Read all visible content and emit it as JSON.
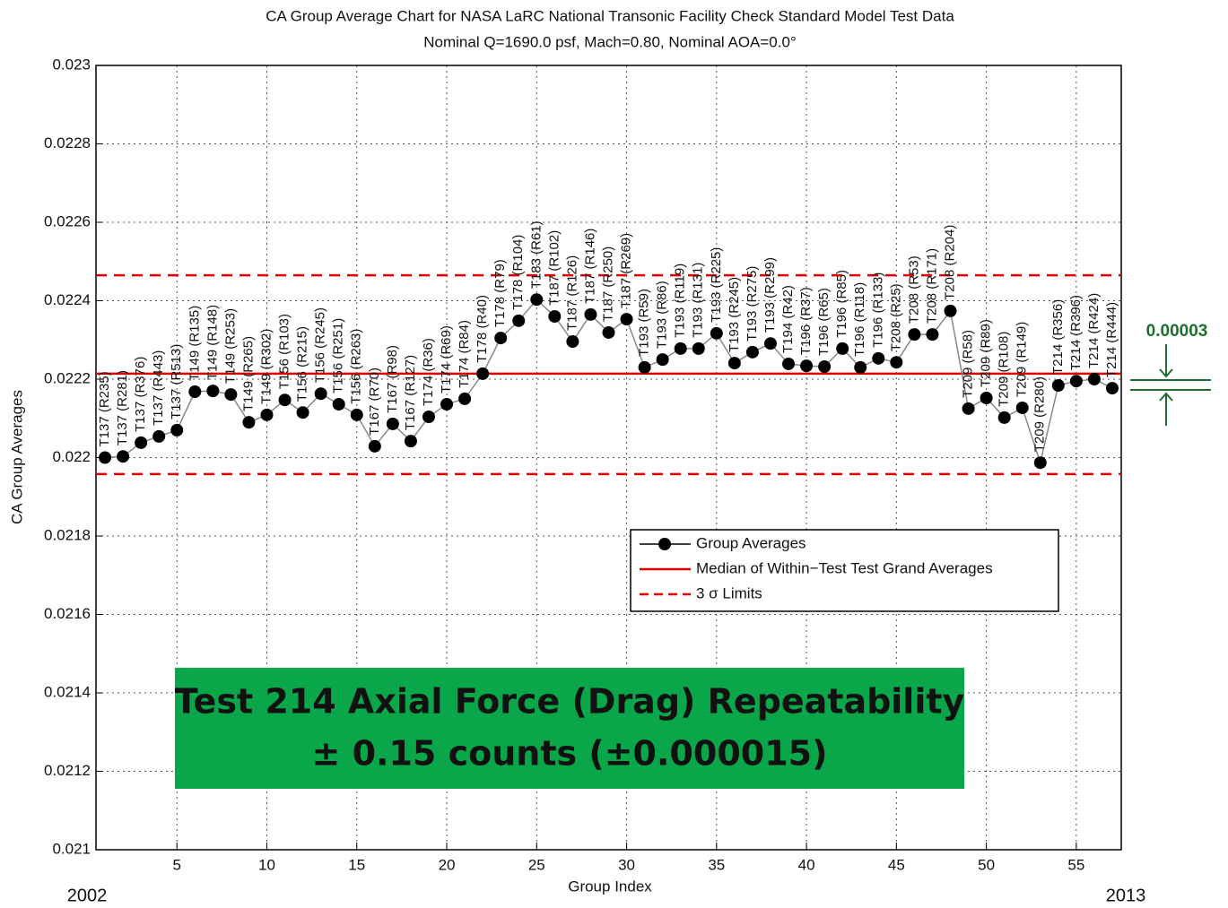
{
  "chart_data": {
    "type": "line",
    "title": "CA Group Average Chart for NASA LaRC National Transonic Facility Check Standard Model Test Data",
    "subtitle": "Nominal Q=1690.0 psf, Mach=0.80, Nominal AOA=0.0°",
    "x_label": "Group Index",
    "y_label": "CA Group Averages",
    "x": [
      1,
      2,
      3,
      4,
      5,
      6,
      7,
      8,
      9,
      10,
      11,
      12,
      13,
      14,
      15,
      16,
      17,
      18,
      19,
      20,
      21,
      22,
      23,
      24,
      25,
      26,
      27,
      28,
      29,
      30,
      31,
      32,
      33,
      34,
      35,
      36,
      37,
      38,
      39,
      40,
      41,
      42,
      43,
      44,
      45,
      46,
      47,
      48,
      49,
      50,
      51,
      52,
      53,
      54,
      55,
      56,
      57
    ],
    "series": [
      {
        "name": "Group Averages",
        "color": "#000000",
        "values": [
          0.022,
          0.022003,
          0.022038,
          0.022054,
          0.02207,
          0.022168,
          0.02217,
          0.022161,
          0.02209,
          0.022109,
          0.022147,
          0.022115,
          0.022163,
          0.022136,
          0.022109,
          0.022029,
          0.022086,
          0.022042,
          0.022104,
          0.022136,
          0.02215,
          0.022214,
          0.022305,
          0.022349,
          0.022403,
          0.02236,
          0.022296,
          0.022365,
          0.022319,
          0.022353,
          0.02223,
          0.02225,
          0.022278,
          0.022278,
          0.022317,
          0.022241,
          0.022269,
          0.022291,
          0.022239,
          0.022234,
          0.022232,
          0.022278,
          0.02223,
          0.022253,
          0.022243,
          0.022314,
          0.022314,
          0.022374,
          0.022125,
          0.022152,
          0.022102,
          0.022127,
          0.021987,
          0.022184,
          0.022195,
          0.0222,
          0.022177
        ]
      }
    ],
    "point_labels": [
      "T137 (R235)",
      "T137 (R281)",
      "T137 (R376)",
      "T137 (R443)",
      "T137 (R513)",
      "T149 (R135)",
      "T149 (R148)",
      "T149 (R253)",
      "T149 (R265)",
      "T149 (R302)",
      "T156 (R103)",
      "T156 (R215)",
      "T156 (R245)",
      "T156 (R251)",
      "T156 (R263)",
      "T167 (R70)",
      "T167 (R98)",
      "T167 (R127)",
      "T174 (R36)",
      "T174 (R69)",
      "T174 (R84)",
      "T178 (R40)",
      "T178 (R79)",
      "T178 (R104)",
      "T183 (R61)",
      "T187 (R102)",
      "T187 (R126)",
      "T187 (R146)",
      "T187 (R250)",
      "T187 (R269)",
      "T193 (R59)",
      "T193 (R86)",
      "T193 (R119)",
      "T193 (R131)",
      "T193 (R225)",
      "T193 (R245)",
      "T193 (R275)",
      "T193 (R299)",
      "T194 (R42)",
      "T196 (R37)",
      "T196 (R65)",
      "T196 (R85)",
      "T196 (R118)",
      "T196 (R133)",
      "T208 (R25)",
      "T208 (R53)",
      "T208 (R171)",
      "T208 (R204)",
      "T209 (R58)",
      "T209 (R89)",
      "T209 (R108)",
      "T209 (R149)",
      "T209 (R280)",
      "T214 (R356)",
      "T214 (R396)",
      "T214 (R424)",
      "T214 (R444)"
    ],
    "median": {
      "name": "Median of Within−Test Test Grand Averages",
      "value": 0.022214,
      "color": "#e00000"
    },
    "limits": {
      "name": "3 σ Limits",
      "values": [
        0.022465,
        0.021958
      ],
      "color": "#e00000"
    },
    "xlim": [
      0.5,
      57.5
    ],
    "ylim": [
      0.021,
      0.023
    ],
    "xticks": [
      5,
      10,
      15,
      20,
      25,
      30,
      35,
      40,
      45,
      50,
      55
    ],
    "yticks": [
      0.021,
      0.0212,
      0.0214,
      0.0216,
      0.0218,
      0.022,
      0.0222,
      0.0224,
      0.0226,
      0.0228,
      0.023
    ],
    "grid": true,
    "annotation": [
      "Test 214 Axial Force (Drag) Repeatability",
      "± 0.15 counts (±0.000015)"
    ],
    "band_label": "0.00003",
    "start_year": "2002",
    "end_year": "2013"
  }
}
